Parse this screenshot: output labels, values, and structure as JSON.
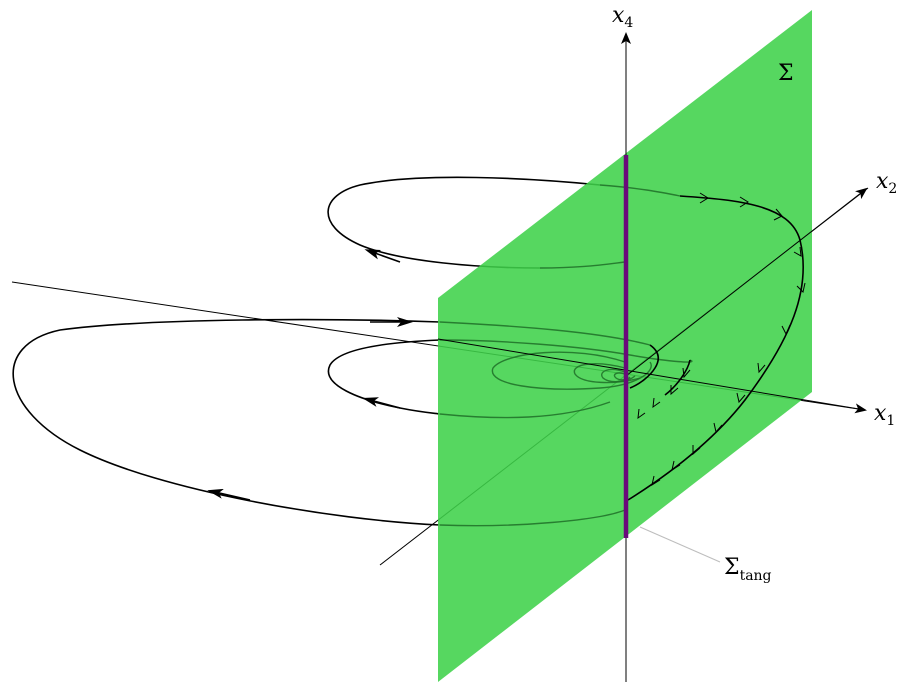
{
  "labels": {
    "x1_letter": "x",
    "x1_sub": "1",
    "x2_letter": "x",
    "x2_sub": "2",
    "x4_letter": "x",
    "x4_sub": "4",
    "sigma": "Σ",
    "sigma_tang_main": "Σ",
    "sigma_tang_sub": "tang"
  },
  "colors": {
    "plane": "#3fd24a",
    "tangency": "#6a0a7a",
    "curve": "#000000",
    "axis": "#000000",
    "leader": "#bdbdbd"
  }
}
